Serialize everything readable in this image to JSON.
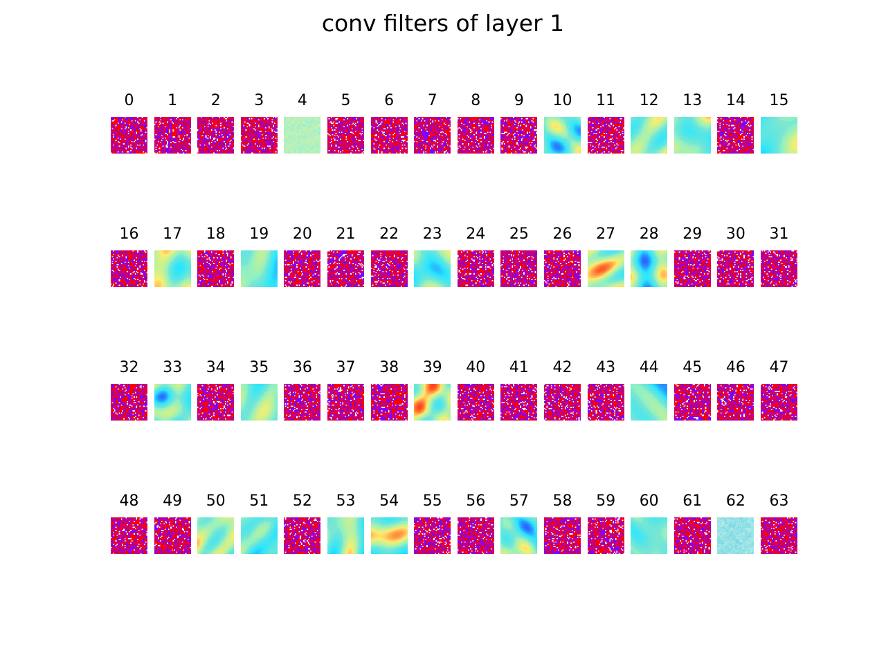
{
  "title": "conv filters of layer 1",
  "grid": {
    "rows": 4,
    "cols": 16
  },
  "filters": [
    {
      "label": "0",
      "style": "striped"
    },
    {
      "label": "1",
      "style": "striped"
    },
    {
      "label": "2",
      "style": "striped"
    },
    {
      "label": "3",
      "style": "striped"
    },
    {
      "label": "4",
      "style": "noisy-green"
    },
    {
      "label": "5",
      "style": "striped"
    },
    {
      "label": "6",
      "style": "striped"
    },
    {
      "label": "7",
      "style": "striped"
    },
    {
      "label": "8",
      "style": "striped"
    },
    {
      "label": "9",
      "style": "striped"
    },
    {
      "label": "10",
      "style": "smooth-cyan"
    },
    {
      "label": "11",
      "style": "striped"
    },
    {
      "label": "12",
      "style": "smooth-green"
    },
    {
      "label": "13",
      "style": "smooth-cyan"
    },
    {
      "label": "14",
      "style": "striped"
    },
    {
      "label": "15",
      "style": "smooth-mixed"
    },
    {
      "label": "16",
      "style": "striped"
    },
    {
      "label": "17",
      "style": "smooth-warm"
    },
    {
      "label": "18",
      "style": "fine-striped"
    },
    {
      "label": "19",
      "style": "smooth-cyan"
    },
    {
      "label": "20",
      "style": "striped"
    },
    {
      "label": "21",
      "style": "striped"
    },
    {
      "label": "22",
      "style": "striped"
    },
    {
      "label": "23",
      "style": "smooth-cyan"
    },
    {
      "label": "24",
      "style": "fine-striped"
    },
    {
      "label": "25",
      "style": "striped"
    },
    {
      "label": "26",
      "style": "striped"
    },
    {
      "label": "27",
      "style": "smooth-warm"
    },
    {
      "label": "28",
      "style": "smooth-cyan"
    },
    {
      "label": "29",
      "style": "striped"
    },
    {
      "label": "30",
      "style": "striped"
    },
    {
      "label": "31",
      "style": "striped"
    },
    {
      "label": "32",
      "style": "striped"
    },
    {
      "label": "33",
      "style": "smooth-cyan"
    },
    {
      "label": "34",
      "style": "striped"
    },
    {
      "label": "35",
      "style": "smooth-mixed"
    },
    {
      "label": "36",
      "style": "fine-striped"
    },
    {
      "label": "37",
      "style": "striped"
    },
    {
      "label": "38",
      "style": "striped"
    },
    {
      "label": "39",
      "style": "smooth-warm"
    },
    {
      "label": "40",
      "style": "striped"
    },
    {
      "label": "41",
      "style": "striped"
    },
    {
      "label": "42",
      "style": "striped"
    },
    {
      "label": "43",
      "style": "striped"
    },
    {
      "label": "44",
      "style": "smooth-blobs"
    },
    {
      "label": "45",
      "style": "striped"
    },
    {
      "label": "46",
      "style": "striped"
    },
    {
      "label": "47",
      "style": "striped"
    },
    {
      "label": "48",
      "style": "striped"
    },
    {
      "label": "49",
      "style": "fine-striped"
    },
    {
      "label": "50",
      "style": "smooth-warm"
    },
    {
      "label": "51",
      "style": "smooth-cyan"
    },
    {
      "label": "52",
      "style": "striped"
    },
    {
      "label": "53",
      "style": "smooth-mixed"
    },
    {
      "label": "54",
      "style": "smooth-green"
    },
    {
      "label": "55",
      "style": "striped"
    },
    {
      "label": "56",
      "style": "striped"
    },
    {
      "label": "57",
      "style": "smooth-cyan"
    },
    {
      "label": "58",
      "style": "striped"
    },
    {
      "label": "59",
      "style": "striped"
    },
    {
      "label": "60",
      "style": "smooth-cyan"
    },
    {
      "label": "61",
      "style": "striped"
    },
    {
      "label": "62",
      "style": "noisy-cyan"
    },
    {
      "label": "63",
      "style": "striped"
    }
  ]
}
